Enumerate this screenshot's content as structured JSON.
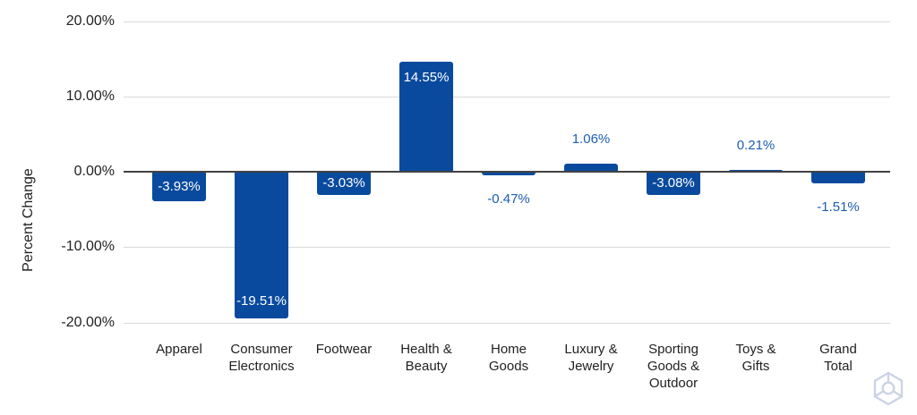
{
  "chart_data": {
    "type": "bar",
    "title": "",
    "ylabel": "Percent Change",
    "xlabel": "",
    "legend": "none",
    "grid": true,
    "ylim": [
      -20,
      20
    ],
    "yticks": [
      {
        "value": 20,
        "label": "20.00%"
      },
      {
        "value": 10,
        "label": "10.00%"
      },
      {
        "value": 0,
        "label": "0.00%"
      },
      {
        "value": -10,
        "label": "-10.00%"
      },
      {
        "value": -20,
        "label": "-20.00%"
      }
    ],
    "categories": [
      "Apparel",
      "Consumer Electronics",
      "Footwear",
      "Health & Beauty",
      "Home Goods",
      "Luxury & Jewelry",
      "Sporting Goods & Outdoor",
      "Toys & Gifts",
      "Grand Total"
    ],
    "category_label_lines": [
      [
        "Apparel"
      ],
      [
        "Consumer",
        "Electronics"
      ],
      [
        "Footwear"
      ],
      [
        "Health &",
        "Beauty"
      ],
      [
        "Home",
        "Goods"
      ],
      [
        "Luxury &",
        "Jewelry"
      ],
      [
        "Sporting",
        "Goods &",
        "Outdoor"
      ],
      [
        "Toys &",
        "Gifts"
      ],
      [
        "Grand",
        "Total"
      ]
    ],
    "values": [
      -3.93,
      -19.51,
      -3.03,
      14.55,
      -0.47,
      1.06,
      -3.08,
      0.21,
      -1.51
    ],
    "data_labels": [
      "-3.93%",
      "-19.51%",
      "-3.03%",
      "14.55%",
      "-0.47%",
      "1.06%",
      "-3.08%",
      "0.21%",
      "-1.51%"
    ],
    "label_placement": [
      "inside-center",
      "inside-end",
      "inside-center",
      "inside-end",
      "outside",
      "outside",
      "inside-center",
      "outside",
      "outside"
    ],
    "colors": {
      "bar": "#0a4a9e",
      "annotation_inside": "#ffffff",
      "annotation_outside": "#1e5eb2",
      "axis_text": "#212121",
      "gridline": "#d9d9d9",
      "baseline": "#424242",
      "watermark": "#ccd4e4",
      "background": "#ffffff"
    }
  },
  "watermark": {
    "icon": "cube-icon"
  }
}
